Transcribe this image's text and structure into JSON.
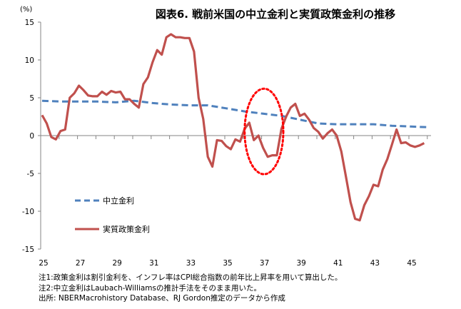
{
  "chart_data": {
    "type": "line",
    "title": "図表6. 戦前米国の中立金利と実質政策金利の推移",
    "ylabel": "(%)",
    "xlabel": "",
    "ylim": [
      -15,
      15
    ],
    "xlim": [
      25,
      46.2
    ],
    "yticks": [
      15,
      10,
      5,
      0,
      -5,
      -10,
      -15
    ],
    "xticks": [
      25,
      27,
      29,
      31,
      33,
      35,
      37,
      39,
      41,
      43,
      45
    ],
    "tick_labels_x": [
      "25",
      "27",
      "29",
      "31",
      "33",
      "35",
      "37",
      "39",
      "41",
      "43",
      "45"
    ],
    "tick_labels_y": [
      "15",
      "10",
      "5",
      "0",
      "-5",
      "-10",
      "-15"
    ],
    "grid": false,
    "legend_position": "left-lower-inside",
    "annotation": "red dotted ellipse highlighting 1936-1938",
    "annotation_color": "#FF0000",
    "annotation_range": {
      "x": [
        36.0,
        38.1
      ],
      "y": [
        -5.1,
        6.2
      ]
    },
    "series": [
      {
        "name": "中立金利",
        "style": "dashed",
        "color": "#4F81BD",
        "x": [
          25,
          26,
          27,
          28,
          29,
          30,
          31,
          32,
          33,
          34,
          35,
          36,
          37,
          38,
          39,
          40,
          41,
          42,
          43,
          44,
          45,
          46
        ],
        "values": [
          4.6,
          4.5,
          4.5,
          4.5,
          4.4,
          4.6,
          4.3,
          4.1,
          4.0,
          4.0,
          3.6,
          3.2,
          2.9,
          2.6,
          2.1,
          1.6,
          1.5,
          1.5,
          1.5,
          1.3,
          1.2,
          1.1
        ]
      },
      {
        "name": "実質政策金利",
        "style": "solid",
        "color": "#C0504D",
        "x": [
          25.0,
          25.25,
          25.5,
          25.75,
          26.0,
          26.25,
          26.5,
          26.75,
          27.0,
          27.25,
          27.5,
          27.75,
          28.0,
          28.25,
          28.5,
          28.75,
          29.0,
          29.25,
          29.5,
          29.75,
          30.0,
          30.25,
          30.5,
          30.75,
          31.0,
          31.25,
          31.5,
          31.75,
          32.0,
          32.25,
          32.5,
          32.75,
          33.0,
          33.25,
          33.5,
          33.75,
          34.0,
          34.25,
          34.5,
          34.75,
          35.0,
          35.25,
          35.5,
          35.75,
          36.0,
          36.25,
          36.5,
          36.75,
          37.0,
          37.25,
          37.5,
          37.75,
          38.0,
          38.25,
          38.5,
          38.75,
          39.0,
          39.25,
          39.5,
          39.75,
          40.0,
          40.25,
          40.5,
          40.75,
          41.0,
          41.25,
          41.5,
          41.75,
          42.0,
          42.25,
          42.5,
          42.75,
          43.0,
          43.25,
          43.5,
          43.75,
          44.0,
          44.25,
          44.5,
          44.75,
          45.0,
          45.25,
          45.5,
          45.75
        ],
        "values": [
          2.7,
          1.6,
          -0.2,
          -0.5,
          0.6,
          0.8,
          5.0,
          5.6,
          6.6,
          6.0,
          5.3,
          5.2,
          5.2,
          5.8,
          5.4,
          5.9,
          5.7,
          5.8,
          4.8,
          4.8,
          4.2,
          3.7,
          6.8,
          7.7,
          9.7,
          11.3,
          10.7,
          13.0,
          13.4,
          13.0,
          13.0,
          12.9,
          12.9,
          11.1,
          5.0,
          2.2,
          -2.8,
          -4.1,
          -0.6,
          -0.7,
          -1.4,
          -1.8,
          -0.5,
          -0.8,
          0.9,
          1.7,
          -0.6,
          0.0,
          -1.6,
          -2.8,
          -2.6,
          -2.6,
          0.9,
          2.5,
          3.7,
          4.2,
          2.6,
          2.9,
          2.1,
          1.0,
          0.5,
          -0.4,
          0.3,
          0.8,
          0.0,
          -2.1,
          -5.4,
          -8.8,
          -11.0,
          -11.2,
          -9.2,
          -8.0,
          -6.5,
          -6.7,
          -4.5,
          -3.1,
          -1.2,
          0.8,
          -1.0,
          -0.9,
          -1.3,
          -1.5,
          -1.3,
          -1.0
        ]
      }
    ]
  },
  "notes": [
    "注1:政策金利は割引金利を、インフレ率はCPI総合指数の前年比上昇率を用いて算出した。",
    "注2:中立金利はLaubach-Williamsの推計手法をそのまま用いた。",
    "出所: NBERMacrohistory Database、RJ Gordon推定のデータから作成"
  ]
}
